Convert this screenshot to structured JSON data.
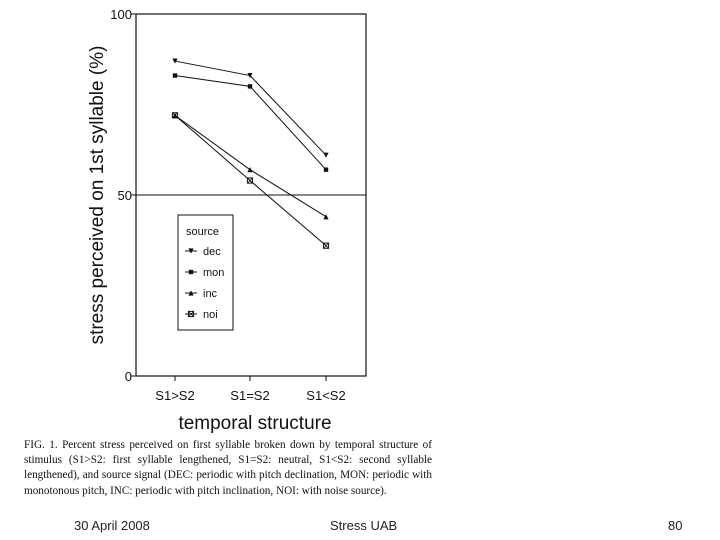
{
  "chart_data": {
    "type": "line",
    "categories": [
      "S1>S2",
      "S1=S2",
      "S1<S2"
    ],
    "series": [
      {
        "name": "dec",
        "marker": "triangle-down",
        "values": [
          87,
          83,
          61
        ]
      },
      {
        "name": "mon",
        "marker": "square",
        "values": [
          83,
          80,
          57
        ]
      },
      {
        "name": "inc",
        "marker": "triangle-up",
        "values": [
          72,
          57,
          44
        ]
      },
      {
        "name": "noi",
        "marker": "square-cross",
        "values": [
          72,
          54,
          36
        ]
      }
    ],
    "yticks": [
      "100",
      "50",
      "0"
    ],
    "ylim": [
      0,
      100
    ],
    "reference_line": 50,
    "xlabel": "temporal structure",
    "ylabel": "stress perceived on 1st syllable (%)",
    "legend_title": "source",
    "legend_position": "lower-left"
  },
  "caption": {
    "text": "FIG. 1. Percent stress perceived on first syllable broken down by temporal structure of stimulus (S1>S2: first syllable lengthened, S1=S2: neutral, S1<S2: second syllable lengthened), and source signal (DEC: periodic with pitch declination, MON: periodic with monotonous pitch, INC: periodic with pitch inclination, NOI: with noise source)."
  },
  "footer": {
    "date": "30 April 2008",
    "title": "Stress UAB",
    "page": "80"
  },
  "colors": {
    "ink": "#111111",
    "background": "#ffffff"
  }
}
